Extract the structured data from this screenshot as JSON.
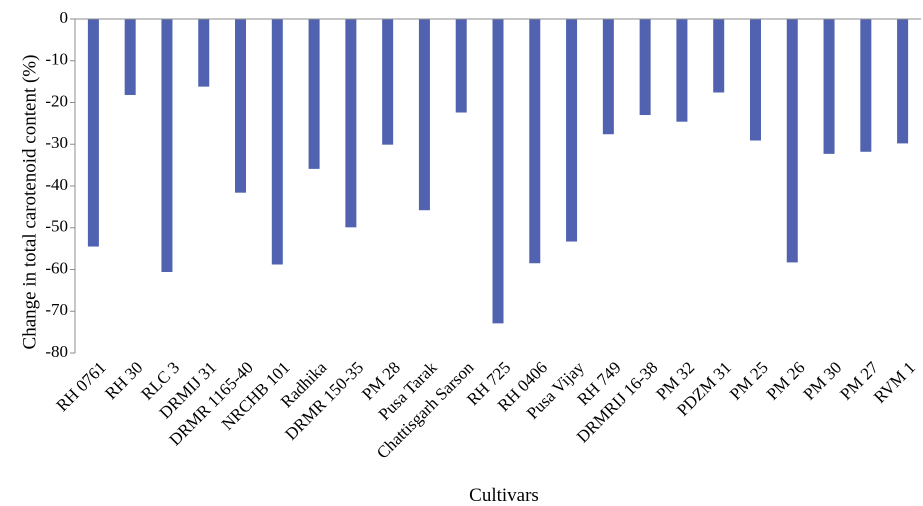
{
  "chart_data": {
    "type": "bar",
    "xlabel": "Cultivars",
    "ylabel": "Change in total carotenoid content (%)",
    "ylim": [
      -80,
      0
    ],
    "yticks": [
      0,
      -10,
      -20,
      -30,
      -40,
      -50,
      -60,
      -70,
      -80
    ],
    "grid": false,
    "legend": "none",
    "bar_color": "#5062b0",
    "categories": [
      "RH 0761",
      "RH 30",
      "RLC 3",
      "DRMIJ 31",
      "DRMR 1165-40",
      "NRCHB 101",
      "Radhika",
      "DRMR 150-35",
      "PM 28",
      "Pusa Tarak",
      "Chattisgarh Sarson",
      "RH 725",
      "RH 0406",
      "Pusa Vijay",
      "RH 749",
      "DRMRIJ 16-38",
      "PM 32",
      "PDZM 31",
      "PM 25",
      "PM 26",
      "PM 30",
      "PM 27",
      "RVM 1"
    ],
    "values": [
      -54.5,
      -18.2,
      -60.6,
      -16.2,
      -41.6,
      -58.8,
      -35.9,
      -49.9,
      -30.1,
      -45.8,
      -22.4,
      -72.9,
      -58.5,
      -53.3,
      -27.6,
      -23.0,
      -24.6,
      -17.6,
      -29.1,
      -58.3,
      -32.3,
      -31.8,
      -29.8
    ]
  }
}
